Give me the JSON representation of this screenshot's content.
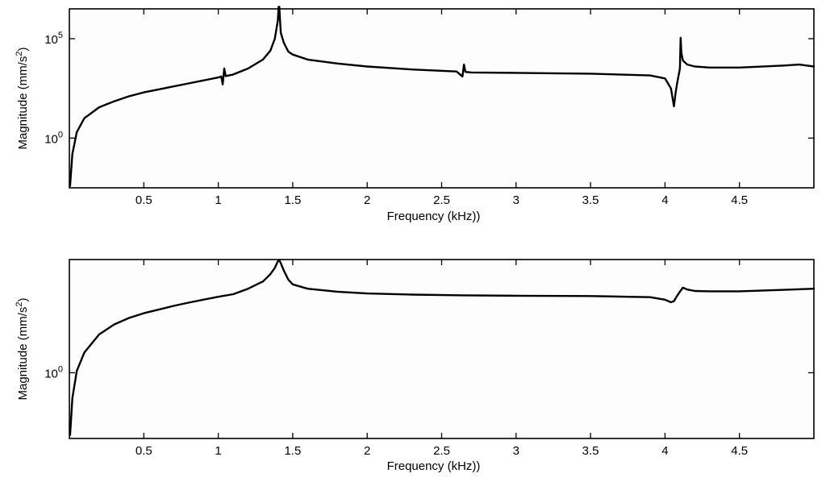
{
  "chart_data": [
    {
      "type": "line",
      "panel": "top",
      "xlabel": "Frequency (kHz))",
      "ylabel_main": "Magnitude (mm/s",
      "ylabel_exp": "2",
      "ylabel_close": ")",
      "xlim": [
        0,
        5
      ],
      "ylog_range": [
        -2.5,
        6.5
      ],
      "xticks": [
        0.5,
        1,
        1.5,
        2,
        2.5,
        3,
        3.5,
        4,
        4.5
      ],
      "xtick_labels": [
        "0.5",
        "1",
        "1.5",
        "2",
        "2.5",
        "3",
        "3.5",
        "4",
        "4.5"
      ],
      "yticks": [
        {
          "base": "10",
          "exp": "0",
          "log": 0
        },
        {
          "base": "10",
          "exp": "5",
          "log": 5
        }
      ],
      "series": [
        {
          "x": [
            0.005,
            0.02,
            0.05,
            0.1,
            0.2,
            0.3,
            0.4,
            0.5,
            0.6,
            0.7,
            0.8,
            0.9,
            1.0,
            1.02,
            1.03,
            1.04,
            1.05,
            1.1,
            1.2,
            1.3,
            1.35,
            1.38,
            1.4,
            1.405,
            1.41,
            1.415,
            1.42,
            1.44,
            1.47,
            1.5,
            1.6,
            1.8,
            2.0,
            2.3,
            2.6,
            2.64,
            2.65,
            2.66,
            2.7,
            3.0,
            3.5,
            3.9,
            4.0,
            4.04,
            4.06,
            4.07,
            4.08,
            4.1,
            4.105,
            4.11,
            4.12,
            4.15,
            4.2,
            4.3,
            4.5,
            4.8,
            4.9,
            5.0
          ],
          "y": [
            -2.4,
            -0.8,
            0.3,
            1.0,
            1.55,
            1.85,
            2.1,
            2.3,
            2.45,
            2.6,
            2.75,
            2.9,
            3.05,
            3.1,
            2.7,
            3.5,
            3.12,
            3.2,
            3.5,
            3.95,
            4.4,
            5.0,
            5.9,
            6.6,
            6.6,
            5.9,
            5.3,
            4.8,
            4.35,
            4.2,
            3.95,
            3.75,
            3.6,
            3.45,
            3.35,
            3.1,
            3.7,
            3.33,
            3.3,
            3.28,
            3.24,
            3.15,
            3.0,
            2.5,
            1.6,
            2.2,
            2.7,
            3.5,
            5.05,
            4.3,
            3.9,
            3.7,
            3.6,
            3.55,
            3.55,
            3.65,
            3.7,
            3.6
          ]
        }
      ]
    },
    {
      "type": "line",
      "panel": "bottom",
      "xlabel": "Frequency (kHz))",
      "ylabel_main": "Magnitude (mm/s",
      "ylabel_exp": "2",
      "ylabel_close": ")",
      "xlim": [
        0,
        5
      ],
      "ylog_range": [
        -1.8,
        3.1
      ],
      "xticks": [
        0.5,
        1,
        1.5,
        2,
        2.5,
        3,
        3.5,
        4,
        4.5
      ],
      "xtick_labels": [
        "0.5",
        "1",
        "1.5",
        "2",
        "2.5",
        "3",
        "3.5",
        "4",
        "4.5"
      ],
      "yticks": [
        {
          "base": "10",
          "exp": "0",
          "log": 0
        }
      ],
      "series": [
        {
          "x": [
            0.005,
            0.02,
            0.05,
            0.1,
            0.2,
            0.3,
            0.4,
            0.5,
            0.6,
            0.7,
            0.8,
            0.9,
            1.0,
            1.1,
            1.2,
            1.3,
            1.35,
            1.38,
            1.4,
            1.41,
            1.42,
            1.44,
            1.47,
            1.5,
            1.6,
            1.8,
            2.0,
            2.3,
            2.65,
            3.0,
            3.5,
            3.9,
            4.0,
            4.04,
            4.06,
            4.08,
            4.1,
            4.12,
            4.15,
            4.2,
            4.3,
            4.5,
            4.8,
            5.0
          ],
          "y": [
            -1.7,
            -0.7,
            0.05,
            0.55,
            1.05,
            1.32,
            1.5,
            1.63,
            1.73,
            1.83,
            1.92,
            2.0,
            2.08,
            2.15,
            2.3,
            2.5,
            2.7,
            2.87,
            3.05,
            3.08,
            3.0,
            2.8,
            2.55,
            2.42,
            2.3,
            2.22,
            2.17,
            2.14,
            2.12,
            2.11,
            2.1,
            2.07,
            2.0,
            1.93,
            1.96,
            2.1,
            2.22,
            2.33,
            2.28,
            2.24,
            2.23,
            2.23,
            2.27,
            2.3
          ]
        }
      ]
    }
  ]
}
